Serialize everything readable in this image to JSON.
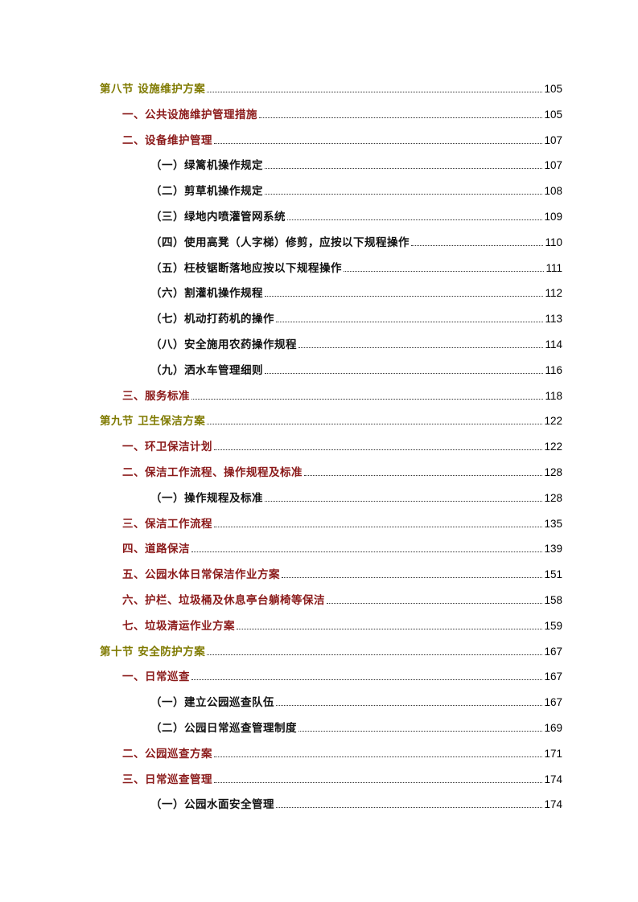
{
  "colors": {
    "level1": "#7f7a00",
    "level2": "#8b1a1a",
    "level3": "#111111"
  },
  "toc": [
    {
      "level": 1,
      "title": "第八节  设施维护方案",
      "page": "105"
    },
    {
      "level": 2,
      "title": "一、公共设施维护管理措施",
      "page": "105"
    },
    {
      "level": 2,
      "title": "二、设备维护管理",
      "page": "107"
    },
    {
      "level": 3,
      "title": "（一）绿篱机操作规定",
      "page": "107"
    },
    {
      "level": 3,
      "title": "（二）剪草机操作规定",
      "page": "108"
    },
    {
      "level": 3,
      "title": "（三）绿地内喷灌管网系统",
      "page": "109"
    },
    {
      "level": 3,
      "title": "（四）使用高凳（人字梯）修剪，应按以下规程操作",
      "page": "110"
    },
    {
      "level": 3,
      "title": "（五）枉枝锯断落地应按以下规程操作",
      "page": "111"
    },
    {
      "level": 3,
      "title": "（六）割灌机操作规程",
      "page": "112"
    },
    {
      "level": 3,
      "title": "（七）机动打药机的操作",
      "page": "113"
    },
    {
      "level": 3,
      "title": "（八）安全施用农药操作规程",
      "page": "114"
    },
    {
      "level": 3,
      "title": "（九）洒水车管理细则",
      "page": "116"
    },
    {
      "level": 2,
      "title": "三、服务标准",
      "page": "118"
    },
    {
      "level": 1,
      "title": "第九节  卫生保洁方案",
      "page": "122"
    },
    {
      "level": 2,
      "title": "一、环卫保洁计划",
      "page": "122"
    },
    {
      "level": 2,
      "title": "二、保洁工作流程、操作规程及标准",
      "page": "128"
    },
    {
      "level": 3,
      "title": "（一）操作规程及标准",
      "page": "128"
    },
    {
      "level": 2,
      "title": "三、保洁工作流程",
      "page": "135"
    },
    {
      "level": 2,
      "title": "四、道路保洁",
      "page": "139"
    },
    {
      "level": 2,
      "title": "五、公园水体日常保洁作业方案",
      "page": "151"
    },
    {
      "level": 2,
      "title": "六、护栏、垃圾桶及休息亭台躺椅等保洁",
      "page": "158"
    },
    {
      "level": 2,
      "title": "七、垃圾清运作业方案",
      "page": "159"
    },
    {
      "level": 1,
      "title": "第十节  安全防护方案",
      "page": "167"
    },
    {
      "level": 2,
      "title": "一、日常巡查",
      "page": "167"
    },
    {
      "level": 3,
      "title": "（一）建立公园巡查队伍",
      "page": "167"
    },
    {
      "level": 3,
      "title": "（二）公园日常巡查管理制度",
      "page": "169"
    },
    {
      "level": 2,
      "title": "二、公园巡查方案",
      "page": "171"
    },
    {
      "level": 2,
      "title": "三、日常巡查管理",
      "page": "174"
    },
    {
      "level": 3,
      "title": "（一）公园水面安全管理",
      "page": "174"
    }
  ]
}
